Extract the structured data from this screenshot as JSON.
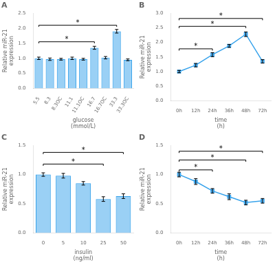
{
  "chart_data": [
    {
      "type": "bar",
      "title": "A",
      "categories": [
        "5.5",
        "8.3",
        "8.3OC",
        "11.1",
        "11.1OC",
        "16.7",
        "16.7OC",
        "33.3",
        "33.3OC"
      ],
      "values": [
        1.0,
        0.97,
        0.97,
        1.0,
        0.97,
        1.35,
        1.02,
        1.9,
        0.95
      ],
      "errors": [
        0.04,
        0.04,
        0.03,
        0.04,
        0.03,
        0.05,
        0.04,
        0.06,
        0.03
      ],
      "xlabel": "glucose\n(mmol/L)",
      "ylabel": "Relative miR-21\nexpression",
      "ylim": [
        0,
        2.5
      ],
      "yticks": [
        {
          "value": 0,
          "label": "0.0"
        },
        {
          "value": 0.5,
          "label": "0.5"
        },
        {
          "value": 1.0,
          "label": "1.0"
        },
        {
          "value": 1.5,
          "label": "1.5"
        },
        {
          "value": 2.0,
          "label": "2.0"
        },
        {
          "value": 2.5,
          "label": "2.5"
        }
      ],
      "grid": false,
      "annotations": [
        {
          "x1": "5.5",
          "x2": "16.7",
          "y": 1.55,
          "label": "*"
        },
        {
          "x1": "5.5",
          "x2": "33.3",
          "y": 2.1,
          "label": "*"
        }
      ]
    },
    {
      "type": "line",
      "title": "B",
      "marker": "square",
      "categories": [
        "0h",
        "12h",
        "24h",
        "36h",
        "48h",
        "72h"
      ],
      "values": [
        1.0,
        1.22,
        1.58,
        1.88,
        2.28,
        1.35
      ],
      "errors": [
        0.04,
        0.06,
        0.07,
        0.05,
        0.08,
        0.06
      ],
      "xlabel": "time\n(h)",
      "ylabel": "Relative miR-21\nexpression",
      "ylim": [
        0,
        3.0
      ],
      "yticks": [
        {
          "value": 0,
          "label": "0.0"
        },
        {
          "value": 0.5,
          "label": "0.5"
        },
        {
          "value": 1.0,
          "label": "1.0"
        },
        {
          "value": 1.5,
          "label": "1.5"
        },
        {
          "value": 2.0,
          "label": "2.0"
        },
        {
          "value": 2.5,
          "label": "2.5"
        },
        {
          "value": 3.0,
          "label": "3.0"
        }
      ],
      "grid": false,
      "annotations": [
        {
          "x1": "0h",
          "x2": "24h",
          "y": 1.78,
          "label": "*"
        },
        {
          "x1": "0h",
          "x2": "48h",
          "y": 2.55,
          "label": "*"
        },
        {
          "x1": "0h",
          "x2": "72h",
          "y": 2.82,
          "label": "*"
        }
      ]
    },
    {
      "type": "bar",
      "title": "C",
      "categories": [
        "0",
        "5",
        "10",
        "25",
        "50"
      ],
      "values": [
        1.0,
        0.98,
        0.85,
        0.58,
        0.63
      ],
      "errors": [
        0.03,
        0.04,
        0.03,
        0.04,
        0.04
      ],
      "xlabel": "insulin\n(ng/ml)",
      "ylabel": "Relative miR-21\nexpression",
      "ylim": [
        0,
        1.5
      ],
      "yticks": [
        {
          "value": 0,
          "label": "0.0"
        },
        {
          "value": 0.5,
          "label": "0.5"
        },
        {
          "value": 1.0,
          "label": "1.0"
        },
        {
          "value": 1.5,
          "label": "1.5"
        }
      ],
      "grid": false,
      "annotations": [
        {
          "x1": "0",
          "x2": "25",
          "y": 1.18,
          "label": "*"
        },
        {
          "x1": "0",
          "x2": "50",
          "y": 1.38,
          "label": "*"
        }
      ]
    },
    {
      "type": "line",
      "title": "D",
      "marker": "square",
      "categories": [
        "0h",
        "12h",
        "24h",
        "36h",
        "48h",
        "72h"
      ],
      "values": [
        1.0,
        0.88,
        0.72,
        0.62,
        0.52,
        0.55
      ],
      "errors": [
        0.04,
        0.05,
        0.04,
        0.05,
        0.04,
        0.04
      ],
      "xlabel": "time\n(h)",
      "ylabel": "Relative miR-21\nexpression",
      "ylim": [
        0,
        1.5
      ],
      "yticks": [
        {
          "value": 0,
          "label": "0.0"
        },
        {
          "value": 0.5,
          "label": "0.5"
        },
        {
          "value": 1.0,
          "label": "1.0"
        },
        {
          "value": 1.5,
          "label": "1.5"
        }
      ],
      "grid": false,
      "annotations": [
        {
          "x1": "0h",
          "x2": "24h",
          "y": 1.08,
          "label": "*"
        },
        {
          "x1": "0h",
          "x2": "48h",
          "y": 1.25,
          "label": "*"
        },
        {
          "x1": "0h",
          "x2": "72h",
          "y": 1.4,
          "label": "*"
        }
      ]
    }
  ]
}
